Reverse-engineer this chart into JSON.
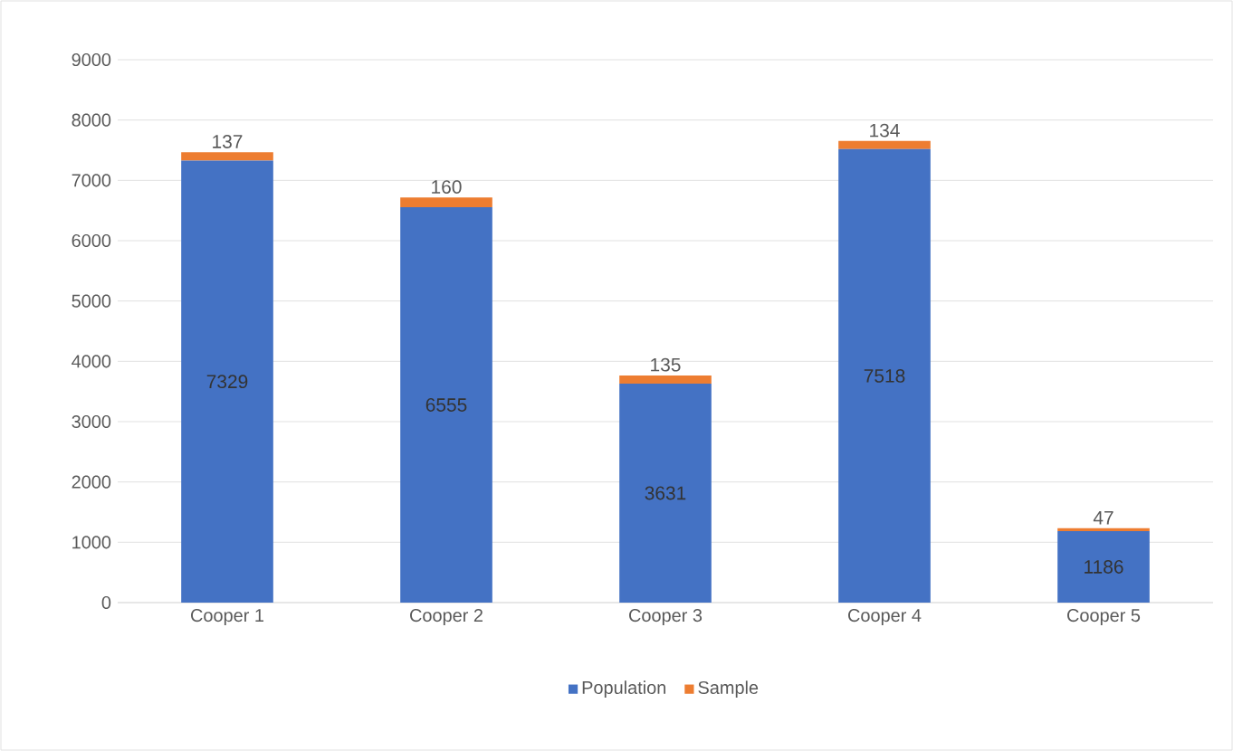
{
  "chart_data": {
    "type": "bar",
    "stacked": true,
    "categories": [
      "Cooper 1",
      "Cooper 2",
      "Cooper 3",
      "Cooper 4",
      "Cooper 5"
    ],
    "series": [
      {
        "name": "Population",
        "color": "#4472c4",
        "values": [
          7329,
          6555,
          3631,
          7518,
          1186
        ]
      },
      {
        "name": "Sample",
        "color": "#ed7d31",
        "values": [
          137,
          160,
          135,
          134,
          47
        ]
      }
    ],
    "ylim": [
      0,
      9000
    ],
    "yticks": [
      0,
      1000,
      2000,
      3000,
      4000,
      5000,
      6000,
      7000,
      8000,
      9000
    ],
    "grid": "y",
    "legend": "bottom",
    "data_labels": true
  }
}
